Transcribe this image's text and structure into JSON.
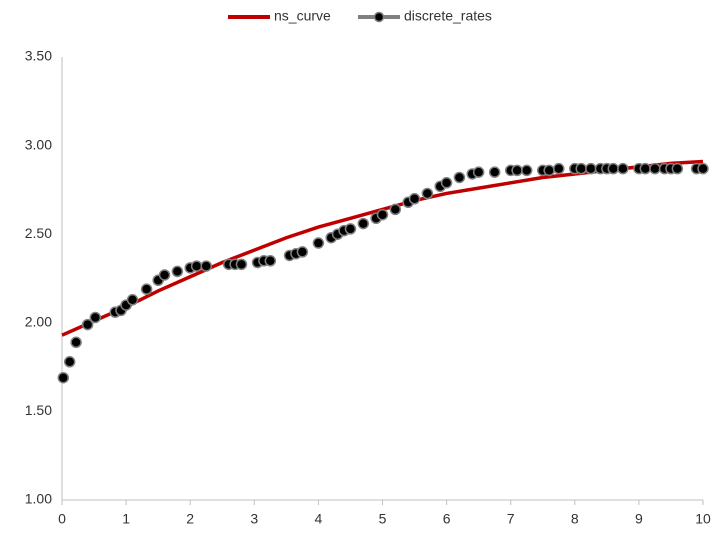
{
  "chart_data": {
    "type": "line",
    "xlim": [
      0,
      10
    ],
    "xticks": [
      0,
      1,
      2,
      3,
      4,
      5,
      6,
      7,
      8,
      9,
      10
    ],
    "ylim": [
      1,
      3.5
    ],
    "yticks": [
      {
        "value": 1,
        "label": "1.00"
      },
      {
        "value": 1.5,
        "label": "1.50"
      },
      {
        "value": 2,
        "label": "2.00"
      },
      {
        "value": 2.5,
        "label": "2.50"
      },
      {
        "value": 3,
        "label": "3.00"
      },
      {
        "value": 3.5,
        "label": "3.50"
      }
    ],
    "grid": false,
    "legend": "top",
    "series": [
      {
        "name": "ns_curve",
        "color": "#c00000",
        "line": true,
        "markers": false,
        "x": [
          0,
          0.5,
          1,
          1.5,
          2,
          2.5,
          3,
          3.5,
          4,
          4.5,
          5,
          5.5,
          6,
          6.5,
          7,
          7.5,
          8,
          8.5,
          9,
          9.5,
          10
        ],
        "values": [
          1.93,
          2.01,
          2.09,
          2.18,
          2.26,
          2.34,
          2.41,
          2.48,
          2.54,
          2.59,
          2.64,
          2.69,
          2.73,
          2.76,
          2.79,
          2.82,
          2.84,
          2.86,
          2.88,
          2.9,
          2.91
        ]
      },
      {
        "name": "discrete_rates",
        "color": "#808080",
        "marker_color": "#000000",
        "line": false,
        "markers": true,
        "x": [
          0.02,
          0.12,
          0.22,
          0.4,
          0.52,
          0.83,
          0.92,
          1.0,
          1.1,
          1.32,
          1.5,
          1.6,
          1.8,
          2.0,
          2.1,
          2.25,
          2.6,
          2.7,
          2.8,
          3.05,
          3.15,
          3.25,
          3.55,
          3.65,
          3.75,
          4.0,
          4.2,
          4.3,
          4.4,
          4.5,
          4.7,
          4.9,
          5.0,
          5.2,
          5.4,
          5.5,
          5.7,
          5.9,
          6.0,
          6.2,
          6.4,
          6.5,
          6.75,
          7.0,
          7.1,
          7.25,
          7.5,
          7.6,
          7.75,
          8.0,
          8.1,
          8.25,
          8.4,
          8.5,
          8.6,
          8.75,
          9.0,
          9.1,
          9.25,
          9.4,
          9.5,
          9.6,
          9.9,
          10.0
        ],
        "values": [
          1.69,
          1.78,
          1.89,
          1.99,
          2.03,
          2.06,
          2.07,
          2.1,
          2.13,
          2.19,
          2.24,
          2.27,
          2.29,
          2.31,
          2.32,
          2.32,
          2.33,
          2.33,
          2.33,
          2.34,
          2.35,
          2.35,
          2.38,
          2.39,
          2.4,
          2.45,
          2.48,
          2.5,
          2.52,
          2.53,
          2.56,
          2.59,
          2.61,
          2.64,
          2.68,
          2.7,
          2.73,
          2.77,
          2.79,
          2.82,
          2.84,
          2.85,
          2.85,
          2.86,
          2.86,
          2.86,
          2.86,
          2.86,
          2.87,
          2.87,
          2.87,
          2.87,
          2.87,
          2.87,
          2.87,
          2.87,
          2.87,
          2.87,
          2.87,
          2.87,
          2.87,
          2.87,
          2.87,
          2.87
        ]
      }
    ]
  }
}
